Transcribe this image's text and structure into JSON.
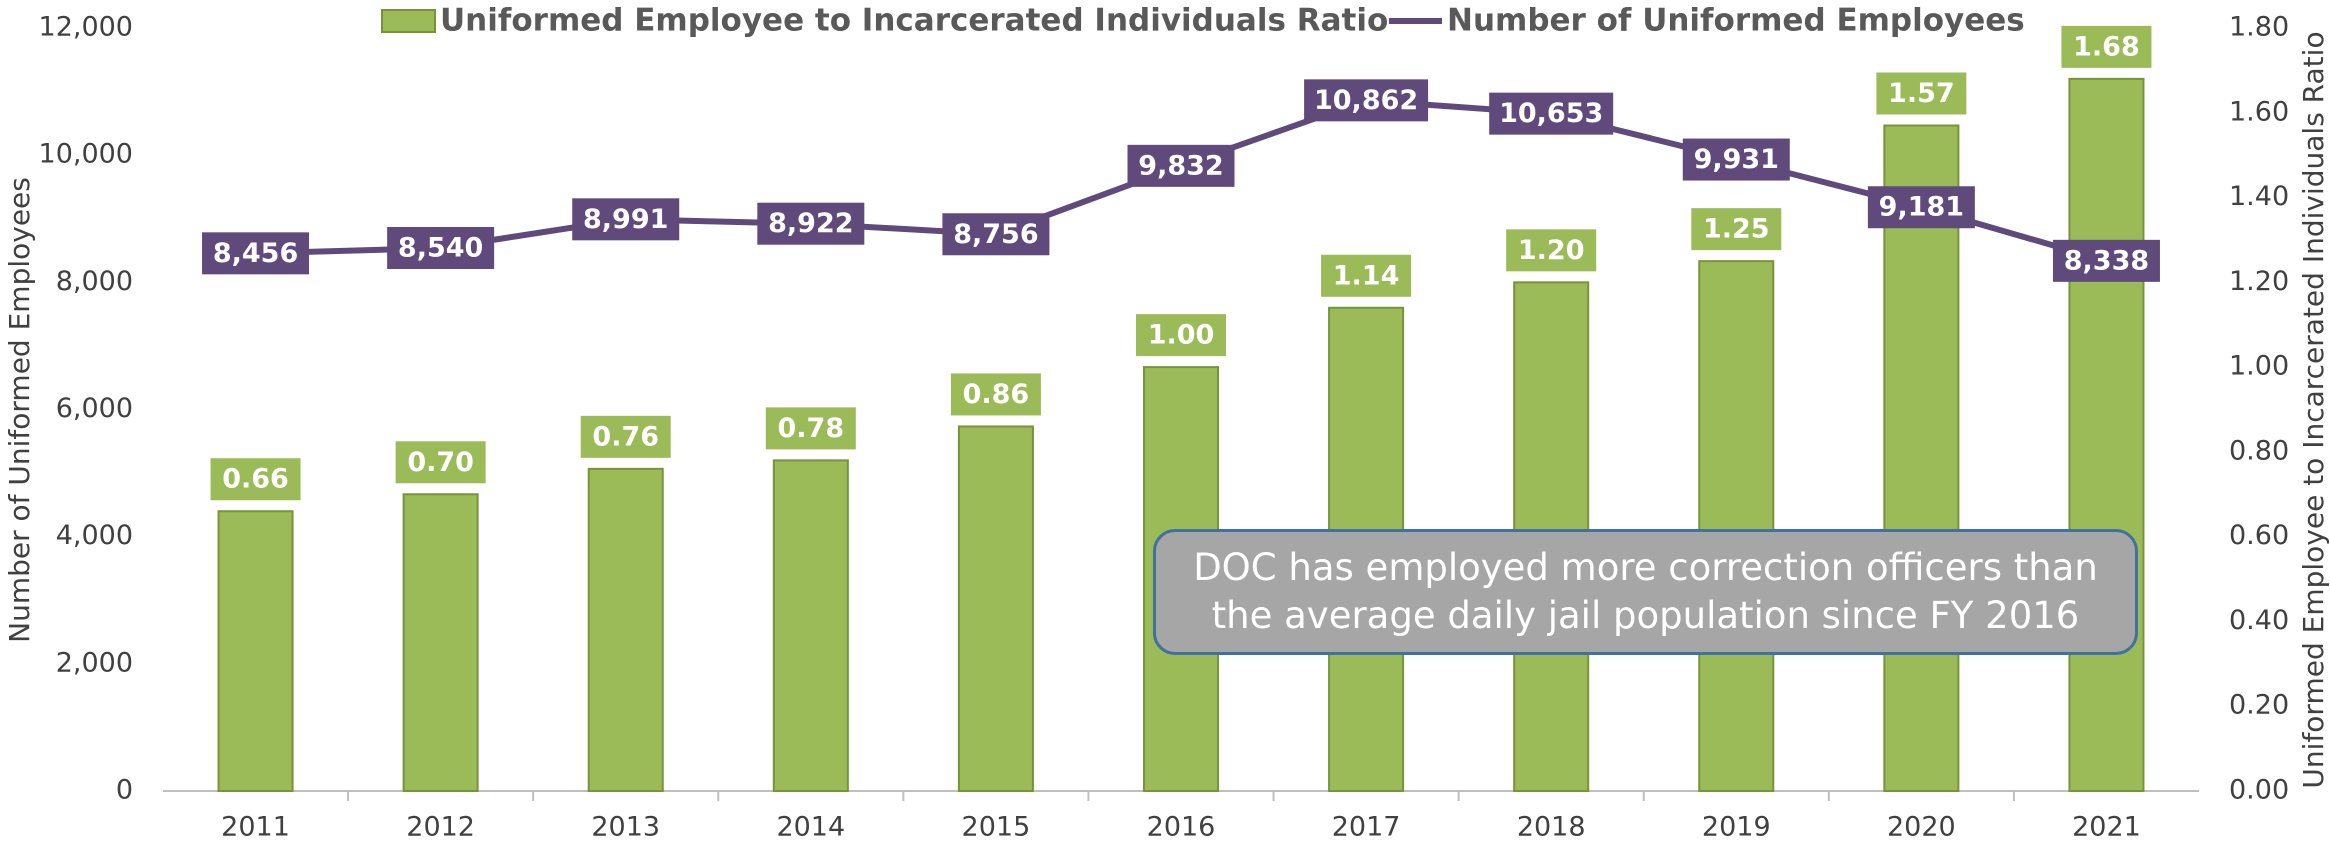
{
  "chart_data": {
    "type": "bar",
    "categories": [
      "2011",
      "2012",
      "2013",
      "2014",
      "2015",
      "2016",
      "2017",
      "2018",
      "2019",
      "2020",
      "2021"
    ],
    "series": [
      {
        "name": "Uniformed Employee to Incarcerated Individuals Ratio",
        "type": "bar",
        "axis": "y2",
        "color": "#9bbb59",
        "values": [
          0.66,
          0.7,
          0.76,
          0.78,
          0.86,
          1.0,
          1.14,
          1.2,
          1.25,
          1.57,
          1.68
        ],
        "value_labels": [
          "0.66",
          "0.70",
          "0.76",
          "0.78",
          "0.86",
          "1.00",
          "1.14",
          "1.20",
          "1.25",
          "1.57",
          "1.68"
        ]
      },
      {
        "name": "Number of Uniformed Employees",
        "type": "line",
        "color": "#604a7b",
        "values": [
          8456,
          8540,
          8991,
          8922,
          8756,
          9832,
          10862,
          10653,
          9931,
          9181,
          8338
        ],
        "value_labels": [
          "8,456",
          "8,540",
          "8,991",
          "8,922",
          "8,756",
          "9,832",
          "10,862",
          "10,653",
          "9,931",
          "9,181",
          "8,338"
        ]
      }
    ],
    "y_label": "Number of Uniformed Employees",
    "y2_label": "Uniformed Employee to Incarcerated Individuals Ratio",
    "ylim": [
      0,
      12000
    ],
    "yticks": [
      0,
      {
        "value": 2000,
        "label": "2,000"
      },
      {
        "value": 4000,
        "label": "4,000"
      },
      {
        "value": 6000,
        "label": "6,000"
      },
      {
        "value": 8000,
        "label": "8,000"
      },
      {
        "value": 10000,
        "label": "10,000"
      },
      {
        "value": 12000,
        "label": "12,000"
      }
    ],
    "y2lim": [
      0,
      1.8
    ],
    "y2ticks": [
      {
        "value": 0,
        "label": "0.00"
      },
      {
        "value": 0.2,
        "label": "0.20"
      },
      {
        "value": 0.4,
        "label": "0.40"
      },
      {
        "value": 0.6,
        "label": "0.60"
      },
      {
        "value": 0.8,
        "label": "0.80"
      },
      {
        "value": 1.0,
        "label": "1.00"
      },
      {
        "value": 1.2,
        "label": "1.20"
      },
      {
        "value": 1.4,
        "label": "1.40"
      },
      {
        "value": 1.6,
        "label": "1.60"
      },
      {
        "value": 1.8,
        "label": "1.80"
      }
    ],
    "legend": "top",
    "annotation": "DOC has employed more correction officers than the average daily jail population since FY 2016"
  }
}
